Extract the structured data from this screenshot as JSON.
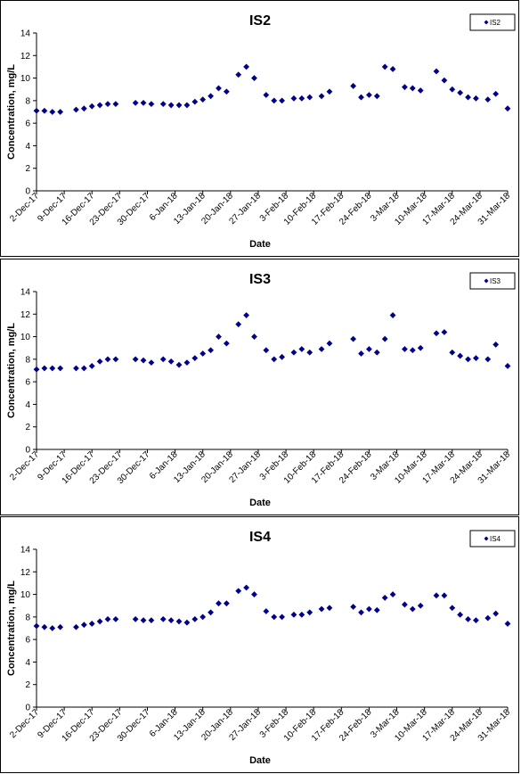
{
  "chart_data": [
    {
      "type": "scatter",
      "title": "IS2",
      "xlabel": "Date",
      "ylabel": "Concentration, mg/L",
      "ylim": [
        0,
        14
      ],
      "yticks": [
        "0",
        "2",
        "4",
        "6",
        "8",
        "10",
        "12",
        "14"
      ],
      "xticks": [
        "2-Dec-17",
        "9-Dec-17",
        "16-Dec-17",
        "23-Dec-17",
        "30-Dec-17",
        "6-Jan-18",
        "13-Jan-18",
        "20-Jan-18",
        "27-Jan-18",
        "3-Feb-18",
        "10-Feb-18",
        "17-Feb-18",
        "24-Feb-18",
        "3-Mar-18",
        "10-Mar-18",
        "17-Mar-18",
        "24-Mar-18",
        "31-Mar-18"
      ],
      "xlim": [
        "2017-12-02",
        "2018-03-31"
      ],
      "grid": false,
      "legend_position": "top-right",
      "marker_color": "#00008b",
      "series": [
        {
          "name": "IS2",
          "points": [
            [
              "2017-12-02",
              7.1
            ],
            [
              "2017-12-04",
              7.1
            ],
            [
              "2017-12-06",
              7.0
            ],
            [
              "2017-12-08",
              7.0
            ],
            [
              "2017-12-12",
              7.2
            ],
            [
              "2017-12-14",
              7.3
            ],
            [
              "2017-12-16",
              7.5
            ],
            [
              "2017-12-18",
              7.6
            ],
            [
              "2017-12-20",
              7.7
            ],
            [
              "2017-12-22",
              7.7
            ],
            [
              "2017-12-27",
              7.8
            ],
            [
              "2017-12-29",
              7.8
            ],
            [
              "2017-12-31",
              7.7
            ],
            [
              "2018-01-03",
              7.7
            ],
            [
              "2018-01-05",
              7.6
            ],
            [
              "2018-01-07",
              7.6
            ],
            [
              "2018-01-09",
              7.6
            ],
            [
              "2018-01-11",
              7.9
            ],
            [
              "2018-01-13",
              8.1
            ],
            [
              "2018-01-15",
              8.4
            ],
            [
              "2018-01-17",
              9.1
            ],
            [
              "2018-01-19",
              8.8
            ],
            [
              "2018-01-22",
              10.3
            ],
            [
              "2018-01-24",
              11.0
            ],
            [
              "2018-01-26",
              10.0
            ],
            [
              "2018-01-29",
              8.5
            ],
            [
              "2018-01-31",
              8.0
            ],
            [
              "2018-02-02",
              8.0
            ],
            [
              "2018-02-05",
              8.2
            ],
            [
              "2018-02-07",
              8.2
            ],
            [
              "2018-02-09",
              8.3
            ],
            [
              "2018-02-12",
              8.4
            ],
            [
              "2018-02-14",
              8.8
            ],
            [
              "2018-02-20",
              9.3
            ],
            [
              "2018-02-22",
              8.3
            ],
            [
              "2018-02-24",
              8.5
            ],
            [
              "2018-02-26",
              8.4
            ],
            [
              "2018-02-28",
              11.0
            ],
            [
              "2018-03-02",
              10.8
            ],
            [
              "2018-03-05",
              9.2
            ],
            [
              "2018-03-07",
              9.1
            ],
            [
              "2018-03-09",
              8.9
            ],
            [
              "2018-03-13",
              10.6
            ],
            [
              "2018-03-15",
              9.8
            ],
            [
              "2018-03-17",
              9.0
            ],
            [
              "2018-03-19",
              8.7
            ],
            [
              "2018-03-21",
              8.3
            ],
            [
              "2018-03-23",
              8.2
            ],
            [
              "2018-03-26",
              8.1
            ],
            [
              "2018-03-28",
              8.6
            ],
            [
              "2018-03-31",
              7.3
            ]
          ]
        }
      ]
    },
    {
      "type": "scatter",
      "title": "IS3",
      "xlabel": "Date",
      "ylabel": "Concentration, mg/L",
      "ylim": [
        0,
        14
      ],
      "yticks": [
        "0",
        "2",
        "4",
        "6",
        "8",
        "10",
        "12",
        "14"
      ],
      "xticks": [
        "2-Dec-17",
        "9-Dec-17",
        "16-Dec-17",
        "23-Dec-17",
        "30-Dec-17",
        "6-Jan-18",
        "13-Jan-18",
        "20-Jan-18",
        "27-Jan-18",
        "3-Feb-18",
        "10-Feb-18",
        "17-Feb-18",
        "24-Feb-18",
        "3-Mar-18",
        "10-Mar-18",
        "17-Mar-18",
        "24-Mar-18",
        "31-Mar-18"
      ],
      "xlim": [
        "2017-12-02",
        "2018-03-31"
      ],
      "grid": false,
      "legend_position": "top-right",
      "marker_color": "#00008b",
      "series": [
        {
          "name": "IS3",
          "points": [
            [
              "2017-12-02",
              7.1
            ],
            [
              "2017-12-04",
              7.2
            ],
            [
              "2017-12-06",
              7.2
            ],
            [
              "2017-12-08",
              7.2
            ],
            [
              "2017-12-12",
              7.2
            ],
            [
              "2017-12-14",
              7.2
            ],
            [
              "2017-12-16",
              7.4
            ],
            [
              "2017-12-18",
              7.8
            ],
            [
              "2017-12-20",
              8.0
            ],
            [
              "2017-12-22",
              8.0
            ],
            [
              "2017-12-27",
              8.0
            ],
            [
              "2017-12-29",
              7.9
            ],
            [
              "2017-12-31",
              7.7
            ],
            [
              "2018-01-03",
              8.0
            ],
            [
              "2018-01-05",
              7.8
            ],
            [
              "2018-01-07",
              7.5
            ],
            [
              "2018-01-09",
              7.7
            ],
            [
              "2018-01-11",
              8.1
            ],
            [
              "2018-01-13",
              8.5
            ],
            [
              "2018-01-15",
              8.8
            ],
            [
              "2018-01-17",
              10.0
            ],
            [
              "2018-01-19",
              9.4
            ],
            [
              "2018-01-22",
              11.1
            ],
            [
              "2018-01-24",
              11.9
            ],
            [
              "2018-01-26",
              10.0
            ],
            [
              "2018-01-29",
              8.8
            ],
            [
              "2018-01-31",
              8.0
            ],
            [
              "2018-02-02",
              8.2
            ],
            [
              "2018-02-05",
              8.6
            ],
            [
              "2018-02-07",
              8.9
            ],
            [
              "2018-02-09",
              8.6
            ],
            [
              "2018-02-12",
              8.9
            ],
            [
              "2018-02-14",
              9.4
            ],
            [
              "2018-02-20",
              9.8
            ],
            [
              "2018-02-22",
              8.5
            ],
            [
              "2018-02-24",
              8.9
            ],
            [
              "2018-02-26",
              8.6
            ],
            [
              "2018-02-28",
              9.8
            ],
            [
              "2018-03-02",
              11.9
            ],
            [
              "2018-03-05",
              8.9
            ],
            [
              "2018-03-07",
              8.8
            ],
            [
              "2018-03-09",
              9.0
            ],
            [
              "2018-03-13",
              10.3
            ],
            [
              "2018-03-15",
              10.4
            ],
            [
              "2018-03-17",
              8.6
            ],
            [
              "2018-03-19",
              8.3
            ],
            [
              "2018-03-21",
              8.0
            ],
            [
              "2018-03-23",
              8.1
            ],
            [
              "2018-03-26",
              8.0
            ],
            [
              "2018-03-28",
              9.3
            ],
            [
              "2018-03-31",
              7.4
            ]
          ]
        }
      ]
    },
    {
      "type": "scatter",
      "title": "IS4",
      "xlabel": "Date",
      "ylabel": "Concentration, mg/L",
      "ylim": [
        0,
        14
      ],
      "yticks": [
        "0",
        "2",
        "4",
        "6",
        "8",
        "10",
        "12",
        "14"
      ],
      "xticks": [
        "2-Dec-17",
        "9-Dec-17",
        "16-Dec-17",
        "23-Dec-17",
        "30-Dec-17",
        "6-Jan-18",
        "13-Jan-18",
        "20-Jan-18",
        "27-Jan-18",
        "3-Feb-18",
        "10-Feb-18",
        "17-Feb-18",
        "24-Feb-18",
        "3-Mar-18",
        "10-Mar-18",
        "17-Mar-18",
        "24-Mar-18",
        "31-Mar-18"
      ],
      "xlim": [
        "2017-12-02",
        "2018-03-31"
      ],
      "grid": false,
      "legend_position": "top-right",
      "marker_color": "#00008b",
      "series": [
        {
          "name": "IS4",
          "points": [
            [
              "2017-12-02",
              7.2
            ],
            [
              "2017-12-04",
              7.1
            ],
            [
              "2017-12-06",
              7.0
            ],
            [
              "2017-12-08",
              7.1
            ],
            [
              "2017-12-12",
              7.1
            ],
            [
              "2017-12-14",
              7.3
            ],
            [
              "2017-12-16",
              7.4
            ],
            [
              "2017-12-18",
              7.6
            ],
            [
              "2017-12-20",
              7.8
            ],
            [
              "2017-12-22",
              7.8
            ],
            [
              "2017-12-27",
              7.8
            ],
            [
              "2017-12-29",
              7.7
            ],
            [
              "2017-12-31",
              7.7
            ],
            [
              "2018-01-03",
              7.8
            ],
            [
              "2018-01-05",
              7.7
            ],
            [
              "2018-01-07",
              7.6
            ],
            [
              "2018-01-09",
              7.5
            ],
            [
              "2018-01-11",
              7.8
            ],
            [
              "2018-01-13",
              8.0
            ],
            [
              "2018-01-15",
              8.4
            ],
            [
              "2018-01-17",
              9.2
            ],
            [
              "2018-01-19",
              9.2
            ],
            [
              "2018-01-22",
              10.3
            ],
            [
              "2018-01-24",
              10.6
            ],
            [
              "2018-01-26",
              10.0
            ],
            [
              "2018-01-29",
              8.5
            ],
            [
              "2018-01-31",
              8.0
            ],
            [
              "2018-02-02",
              8.0
            ],
            [
              "2018-02-05",
              8.2
            ],
            [
              "2018-02-07",
              8.2
            ],
            [
              "2018-02-09",
              8.4
            ],
            [
              "2018-02-12",
              8.7
            ],
            [
              "2018-02-14",
              8.8
            ],
            [
              "2018-02-20",
              8.9
            ],
            [
              "2018-02-22",
              8.4
            ],
            [
              "2018-02-24",
              8.7
            ],
            [
              "2018-02-26",
              8.6
            ],
            [
              "2018-02-28",
              9.7
            ],
            [
              "2018-03-02",
              10.0
            ],
            [
              "2018-03-05",
              9.1
            ],
            [
              "2018-03-07",
              8.7
            ],
            [
              "2018-03-09",
              9.0
            ],
            [
              "2018-03-13",
              9.9
            ],
            [
              "2018-03-15",
              9.9
            ],
            [
              "2018-03-17",
              8.8
            ],
            [
              "2018-03-19",
              8.2
            ],
            [
              "2018-03-21",
              7.8
            ],
            [
              "2018-03-23",
              7.7
            ],
            [
              "2018-03-26",
              7.9
            ],
            [
              "2018-03-28",
              8.3
            ],
            [
              "2018-03-31",
              7.4
            ]
          ]
        }
      ]
    }
  ]
}
